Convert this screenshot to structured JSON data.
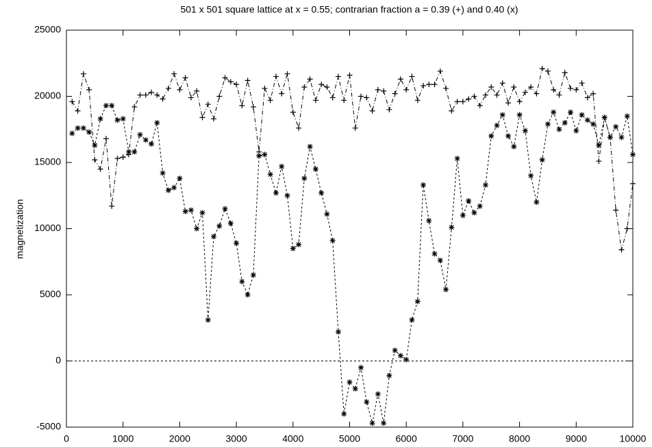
{
  "chart_data": {
    "type": "line",
    "title": "501 x 501 square lattice at x = 0.55; contrarian fraction a = 0.39 (+) and 0.40 (x)",
    "ylabel": "magnetization",
    "x": [
      100,
      200,
      300,
      400,
      500,
      600,
      700,
      800,
      900,
      1000,
      1100,
      1200,
      1300,
      1400,
      1500,
      1600,
      1700,
      1800,
      1900,
      2000,
      2100,
      2200,
      2300,
      2400,
      2500,
      2600,
      2700,
      2800,
      2900,
      3000,
      3100,
      3200,
      3300,
      3400,
      3500,
      3600,
      3700,
      3800,
      3900,
      4000,
      4100,
      4200,
      4300,
      4400,
      4500,
      4600,
      4700,
      4800,
      4900,
      5000,
      5100,
      5200,
      5300,
      5400,
      5500,
      5600,
      5700,
      5800,
      5900,
      6000,
      6100,
      6200,
      6300,
      6400,
      6500,
      6600,
      6700,
      6800,
      6900,
      7000,
      7100,
      7200,
      7300,
      7400,
      7500,
      7600,
      7700,
      7800,
      7900,
      8000,
      8100,
      8200,
      8300,
      8400,
      8500,
      8600,
      8700,
      8800,
      8900,
      9000,
      9100,
      9200,
      9300,
      9400,
      9500,
      9600,
      9700,
      9800,
      9900,
      10000
    ],
    "series": [
      {
        "color": "#000000",
        "marker": "plus",
        "dash": "6 3 1 3",
        "values": [
          19600,
          18900,
          21700,
          20500,
          15200,
          14500,
          16800,
          11700,
          15300,
          15400,
          15600,
          19200,
          20100,
          20100,
          20300,
          20100,
          19800,
          20600,
          21700,
          20500,
          21400,
          19900,
          20400,
          18400,
          19400,
          18300,
          20000,
          21400,
          21100,
          20900,
          19300,
          21200,
          19200,
          15800,
          20600,
          19700,
          21500,
          20200,
          21700,
          18800,
          17600,
          20700,
          21300,
          19700,
          20900,
          20700,
          19900,
          21500,
          19700,
          21600,
          17600,
          20000,
          19900,
          18900,
          20500,
          20400,
          19000,
          20200,
          21300,
          20500,
          21500,
          19700,
          20800,
          20900,
          20900,
          21900,
          20600,
          18900,
          19600,
          19600,
          19800,
          20000,
          19300,
          20100,
          20700,
          20100,
          21000,
          19500,
          20700,
          19600,
          20300,
          20700,
          20200,
          22100,
          21900,
          20500,
          20100,
          21800,
          20600,
          20500,
          21000,
          19900,
          20200,
          15100,
          18400,
          16900,
          11400,
          8400,
          10000,
          13400
        ]
      },
      {
        "color": "#000000",
        "marker": "star",
        "dash": "3 3",
        "values": [
          17200,
          17600,
          17600,
          17300,
          16300,
          18300,
          19300,
          19300,
          18200,
          18300,
          15800,
          15800,
          17100,
          16700,
          16400,
          18000,
          14200,
          12900,
          13100,
          13800,
          11300,
          11400,
          10000,
          11200,
          3100,
          9400,
          10200,
          11500,
          10400,
          8900,
          6000,
          5000,
          6500,
          15500,
          15600,
          14100,
          12700,
          14700,
          12500,
          8500,
          8800,
          13800,
          16200,
          14500,
          12700,
          11100,
          9100,
          2200,
          -4000,
          -1600,
          -2100,
          -500,
          -3100,
          -4700,
          -2500,
          -4700,
          -1100,
          800,
          400,
          100,
          3100,
          4500,
          13300,
          10600,
          8100,
          7600,
          5400,
          10100,
          15300,
          11000,
          12100,
          11200,
          11700,
          13300,
          17000,
          17800,
          18600,
          17000,
          16200,
          18600,
          17400,
          14000,
          12000,
          15200,
          17900,
          18800,
          17500,
          18000,
          18800,
          17400,
          18600,
          18200,
          17900,
          16300,
          18400,
          16900,
          17700,
          16900,
          18500,
          15600
        ]
      }
    ],
    "xlim": [
      0,
      10000
    ],
    "xticks": [
      0,
      1000,
      2000,
      3000,
      4000,
      5000,
      6000,
      7000,
      8000,
      9000,
      10000
    ],
    "ylim": [
      -5000,
      25000
    ],
    "yticks": [
      -5000,
      0,
      5000,
      10000,
      15000,
      20000,
      25000
    ],
    "zero_line": true
  }
}
